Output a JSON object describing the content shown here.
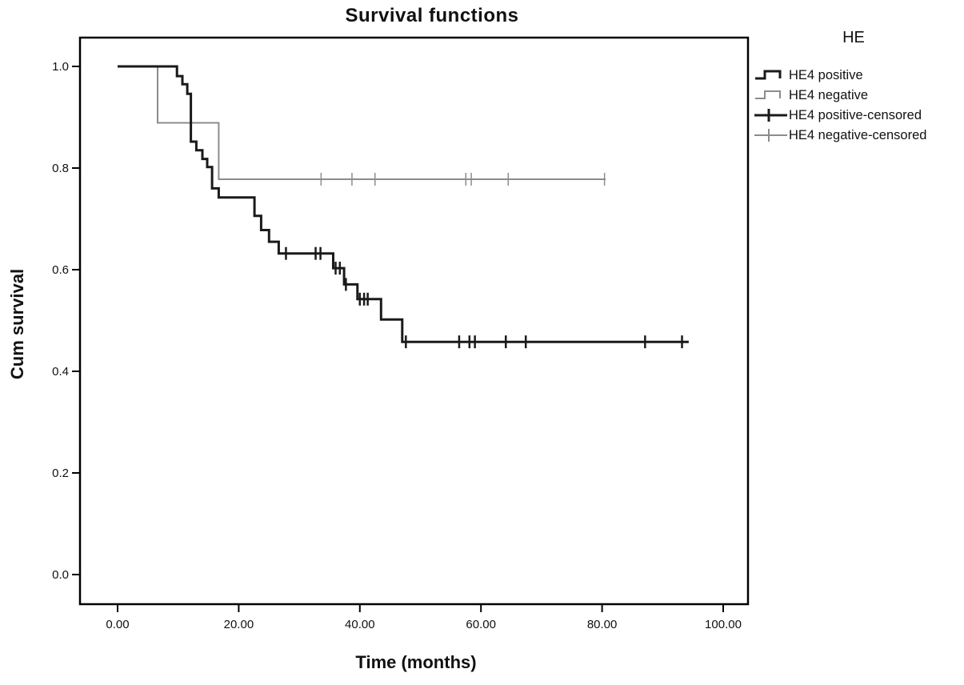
{
  "figure": {
    "title": "Survival functions",
    "x_axis_label": "Time (months)",
    "y_axis_label": "Cum survival"
  },
  "legend": {
    "title": "HE",
    "items": [
      {
        "label": "HE4 positive",
        "symbol": "step-line",
        "color": "#1a1a1a",
        "line_width": 3
      },
      {
        "label": "HE4 negative",
        "symbol": "step-line",
        "color": "#8c8c8c",
        "line_width": 2
      },
      {
        "label": "HE4 positive-censored",
        "symbol": "plus-line",
        "color": "#1a1a1a",
        "line_width": 3
      },
      {
        "label": "HE4 negative-censored",
        "symbol": "plus-line",
        "color": "#8c8c8c",
        "line_width": 2
      }
    ]
  },
  "chart_data": {
    "type": "line",
    "variant": "kaplan-meier-step",
    "title": "Survival functions",
    "xlabel": "Time (months)",
    "ylabel": "Cum survival",
    "xlim": [
      -6.2,
      104.1
    ],
    "ylim": [
      -0.058,
      1.057
    ],
    "grid": false,
    "legend_title": "HE",
    "legend_position": "outside-top-right",
    "x_ticks": [
      {
        "value": 0,
        "label": "0.00"
      },
      {
        "value": 20,
        "label": "20.00"
      },
      {
        "value": 40,
        "label": "40.00"
      },
      {
        "value": 60,
        "label": "60.00"
      },
      {
        "value": 80,
        "label": "80.00"
      },
      {
        "value": 100,
        "label": "100.00"
      }
    ],
    "y_ticks": [
      {
        "value": 1.0,
        "label": "1.0"
      },
      {
        "value": 0.8,
        "label": "0.8"
      },
      {
        "value": 0.6,
        "label": "0.6"
      },
      {
        "value": 0.4,
        "label": "0.4"
      },
      {
        "value": 0.2,
        "label": "0.2"
      },
      {
        "value": 0.0,
        "label": "0.0"
      }
    ],
    "series": [
      {
        "name": "HE4 negative",
        "color": "#8c8c8c",
        "line_width": 2,
        "steps": [
          [
            0,
            1.0
          ],
          [
            6.6,
            0.889
          ],
          [
            16.7,
            0.778
          ]
        ],
        "end_time": 80.6,
        "censored": [
          [
            33.6,
            0.778
          ],
          [
            38.7,
            0.778
          ],
          [
            42.5,
            0.778
          ],
          [
            57.5,
            0.778
          ],
          [
            58.4,
            0.778
          ],
          [
            64.5,
            0.778
          ],
          [
            80.4,
            0.778
          ]
        ]
      },
      {
        "name": "HE4 positive",
        "color": "#1a1a1a",
        "line_width": 3,
        "steps": [
          [
            0,
            1.0
          ],
          [
            9.8,
            0.981
          ],
          [
            10.7,
            0.965
          ],
          [
            11.5,
            0.946
          ],
          [
            12.1,
            0.852
          ],
          [
            13.0,
            0.835
          ],
          [
            14.0,
            0.818
          ],
          [
            14.8,
            0.802
          ],
          [
            15.6,
            0.76
          ],
          [
            16.7,
            0.742
          ],
          [
            22.6,
            0.706
          ],
          [
            23.7,
            0.678
          ],
          [
            25.0,
            0.655
          ],
          [
            26.6,
            0.632
          ],
          [
            35.6,
            0.603
          ],
          [
            37.4,
            0.571
          ],
          [
            39.6,
            0.542
          ],
          [
            43.5,
            0.502
          ],
          [
            47.0,
            0.458
          ]
        ],
        "end_time": 94.3,
        "censored": [
          [
            27.8,
            0.632
          ],
          [
            32.7,
            0.632
          ],
          [
            33.5,
            0.632
          ],
          [
            36.0,
            0.603
          ],
          [
            36.7,
            0.603
          ],
          [
            37.7,
            0.571
          ],
          [
            40.0,
            0.542
          ],
          [
            40.7,
            0.542
          ],
          [
            41.3,
            0.542
          ],
          [
            47.6,
            0.458
          ],
          [
            56.4,
            0.458
          ],
          [
            58.1,
            0.458
          ],
          [
            59.0,
            0.458
          ],
          [
            64.1,
            0.458
          ],
          [
            67.4,
            0.458
          ],
          [
            87.1,
            0.458
          ],
          [
            93.2,
            0.458
          ]
        ]
      }
    ]
  }
}
